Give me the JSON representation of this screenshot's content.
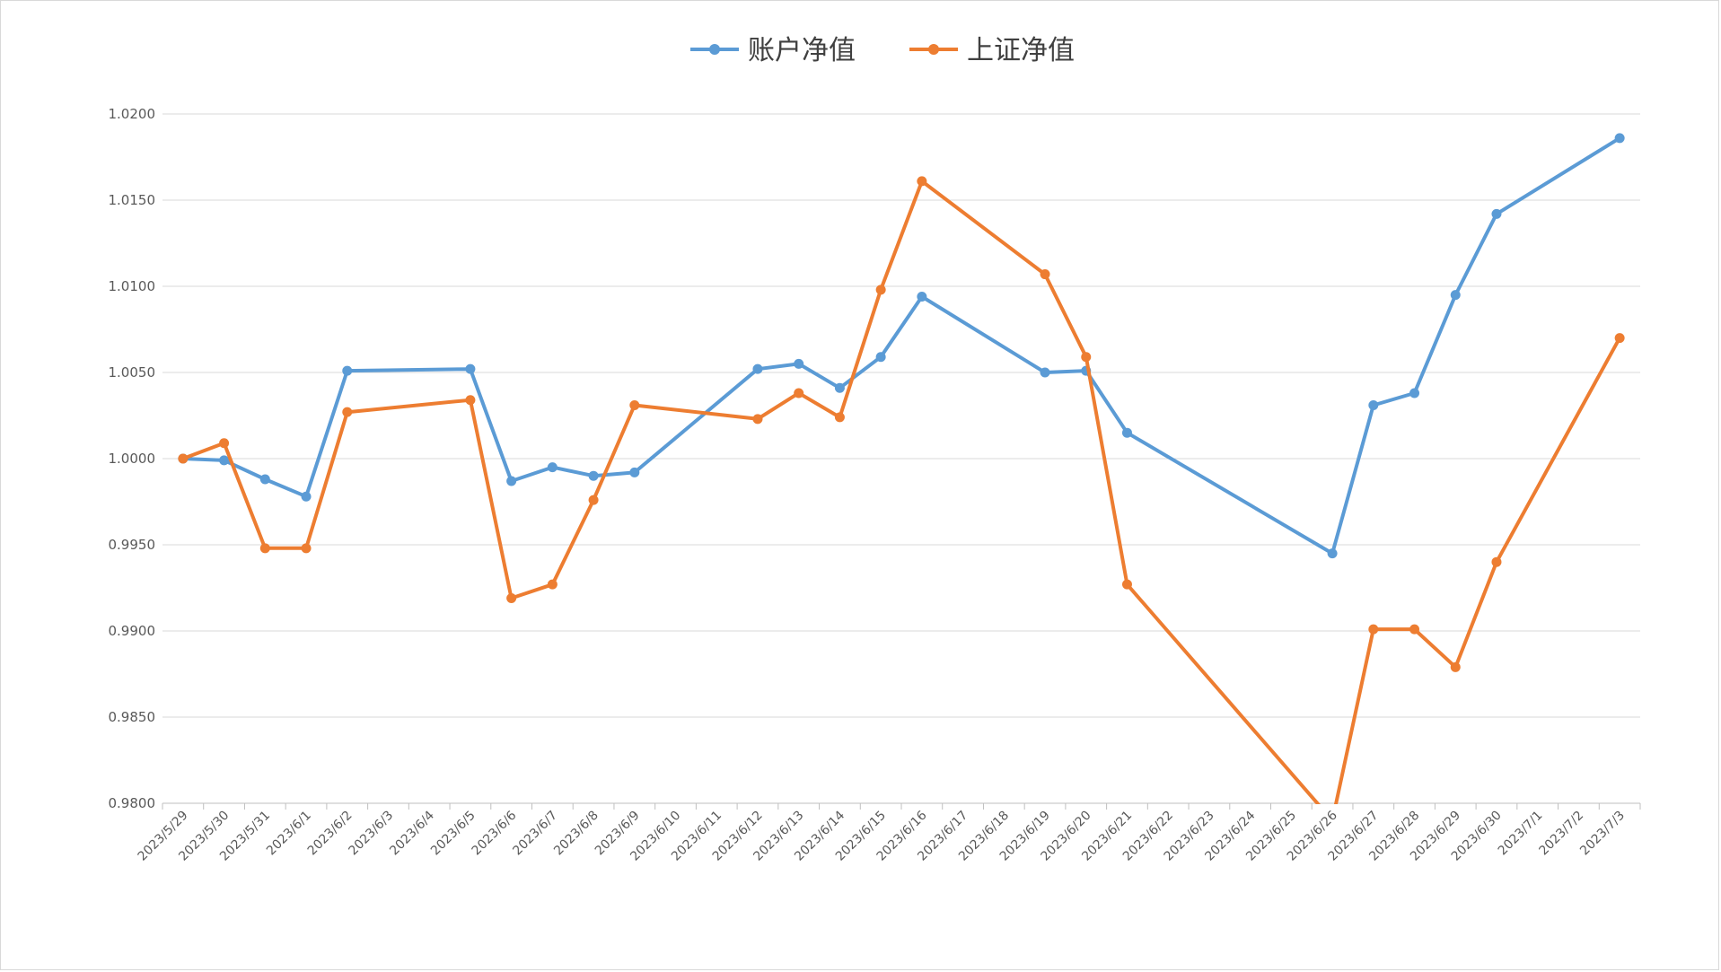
{
  "chart_data": {
    "type": "line",
    "title": "",
    "xlabel": "",
    "ylabel": "",
    "ylim": [
      0.98,
      1.02
    ],
    "y_ticks": [
      "0.9800",
      "0.9850",
      "0.9900",
      "0.9950",
      "1.0000",
      "1.0050",
      "1.0100",
      "1.0150",
      "1.0200"
    ],
    "grid": "horizontal",
    "legend_position": "top-center",
    "categories": [
      "2023/5/29",
      "2023/5/30",
      "2023/5/31",
      "2023/6/1",
      "2023/6/2",
      "2023/6/3",
      "2023/6/4",
      "2023/6/5",
      "2023/6/6",
      "2023/6/7",
      "2023/6/8",
      "2023/6/9",
      "2023/6/10",
      "2023/6/11",
      "2023/6/12",
      "2023/6/13",
      "2023/6/14",
      "2023/6/15",
      "2023/6/16",
      "2023/6/17",
      "2023/6/18",
      "2023/6/19",
      "2023/6/20",
      "2023/6/21",
      "2023/6/22",
      "2023/6/23",
      "2023/6/24",
      "2023/6/25",
      "2023/6/26",
      "2023/6/27",
      "2023/6/28",
      "2023/6/29",
      "2023/6/30",
      "2023/7/1",
      "2023/7/2",
      "2023/7/3"
    ],
    "series": [
      {
        "name": "账户净值",
        "color": "#5b9bd5",
        "values": [
          1.0,
          0.9999,
          0.9988,
          0.9978,
          1.0051,
          null,
          null,
          1.0052,
          0.9987,
          0.9995,
          0.999,
          0.9992,
          null,
          null,
          1.0052,
          1.0055,
          1.0041,
          1.0059,
          1.0094,
          null,
          null,
          1.005,
          1.0051,
          1.0015,
          null,
          null,
          null,
          null,
          0.9945,
          1.0031,
          1.0038,
          1.0095,
          1.0142,
          null,
          null,
          1.0186
        ]
      },
      {
        "name": "上证净值",
        "color": "#ed7d31",
        "values": [
          1.0,
          1.0009,
          0.9948,
          0.9948,
          1.0027,
          null,
          null,
          1.0034,
          0.9919,
          0.9927,
          0.9976,
          1.0031,
          null,
          null,
          1.0023,
          1.0038,
          1.0024,
          1.0098,
          1.0161,
          null,
          null,
          1.0107,
          1.0059,
          0.9927,
          null,
          null,
          null,
          null,
          0.979,
          0.9901,
          0.9901,
          0.9879,
          0.994,
          null,
          null,
          1.007
        ]
      }
    ]
  }
}
